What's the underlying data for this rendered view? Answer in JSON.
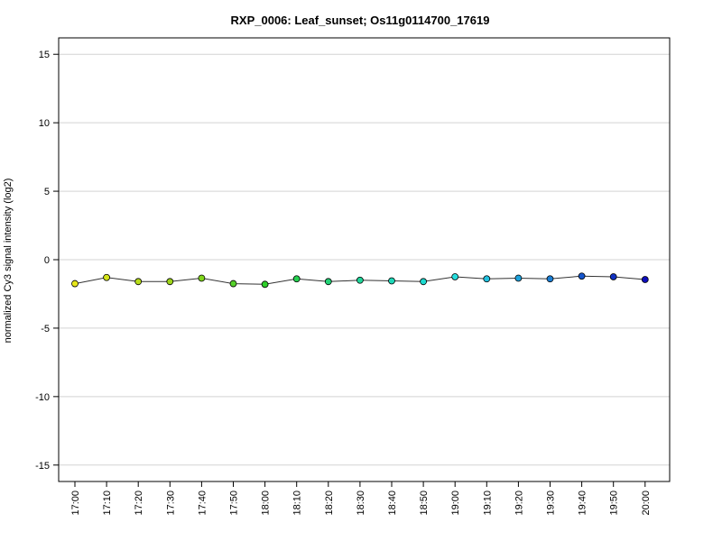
{
  "chart_data": {
    "type": "line",
    "title": "RXP_0006: Leaf_sunset; Os11g0114700_17619",
    "xlabel": "",
    "ylabel": "normalized Cy3 signal intensity (log2)",
    "ylim": [
      -16.2,
      16.2
    ],
    "yticks": [
      -15,
      -10,
      -5,
      0,
      5,
      10,
      15
    ],
    "grid": "horizontal",
    "categories": [
      "17:00",
      "17:10",
      "17:20",
      "17:30",
      "17:40",
      "17:50",
      "18:00",
      "18:10",
      "18:20",
      "18:30",
      "18:40",
      "18:50",
      "19:00",
      "19:10",
      "19:20",
      "19:30",
      "19:40",
      "19:50",
      "20:00"
    ],
    "values": [
      -1.75,
      -1.3,
      -1.6,
      -1.6,
      -1.35,
      -1.75,
      -1.8,
      -1.4,
      -1.6,
      -1.5,
      -1.55,
      -1.6,
      -1.25,
      -1.4,
      -1.35,
      -1.4,
      -1.2,
      -1.25,
      -1.45
    ],
    "point_colors": [
      "#e6e61a",
      "#d4e41a",
      "#b8dd1a",
      "#9ed51a",
      "#7fd61a",
      "#55d12a",
      "#2ecf2a",
      "#26d050",
      "#22d275",
      "#20d69a",
      "#1ed8b8",
      "#1cdad0",
      "#26dede",
      "#22c2e0",
      "#1ea2dc",
      "#1a7ed4",
      "#1656cc",
      "#1232c2",
      "#0e0ebc"
    ]
  }
}
